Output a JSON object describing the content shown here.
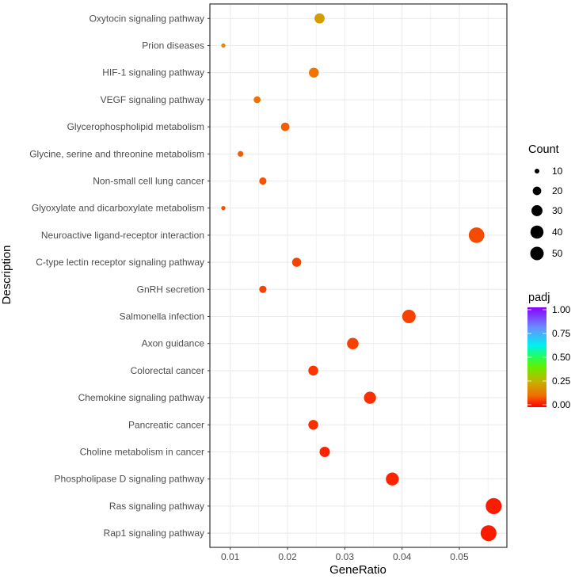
{
  "chart_data": {
    "type": "scatter",
    "title": "",
    "xlabel": "GeneRatio",
    "ylabel": "Description",
    "xlim": [
      0.00645,
      0.0583
    ],
    "xticks": [
      0.01,
      0.02,
      0.03,
      0.04,
      0.05
    ],
    "xtick_labels": [
      "0.01",
      "0.02",
      "0.03",
      "0.04",
      "0.05"
    ],
    "grid": true,
    "categories": [
      "Oxytocin signaling pathway",
      "Prion diseases",
      "HIF-1 signaling pathway",
      "VEGF signaling pathway",
      "Glycerophospholipid metabolism",
      "Glycine, serine and threonine metabolism",
      "Non-small cell lung cancer",
      "Glyoxylate and dicarboxylate metabolism",
      "Neuroactive ligand-receptor interaction",
      "C-type lectin receptor signaling pathway",
      "GnRH secretion",
      "Salmonella infection",
      "Axon guidance",
      "Colorectal cancer",
      "Chemokine signaling pathway",
      "Pancreatic cancer",
      "Choline metabolism in cancer",
      "Phospholipase D signaling pathway",
      "Ras signaling pathway",
      "Rap1 signaling pathway"
    ],
    "gene_ratio": [
      0.0256,
      0.0088,
      0.0246,
      0.0147,
      0.0196,
      0.0118,
      0.0157,
      0.0088,
      0.053,
      0.0216,
      0.0157,
      0.0412,
      0.0314,
      0.0245,
      0.0344,
      0.0245,
      0.0265,
      0.0383,
      0.056,
      0.0551
    ],
    "count": [
      26,
      9,
      25,
      15,
      20,
      12,
      16,
      9,
      54,
      22,
      16,
      42,
      32,
      25,
      35,
      25,
      27,
      39,
      57,
      56
    ],
    "padj": [
      0.21,
      0.17,
      0.13,
      0.12,
      0.1,
      0.1,
      0.09,
      0.09,
      0.08,
      0.07,
      0.07,
      0.07,
      0.07,
      0.06,
      0.05,
      0.05,
      0.04,
      0.04,
      0.03,
      0.03
    ],
    "legend_size": {
      "title": "Count",
      "values": [
        10,
        20,
        30,
        40,
        50
      ],
      "labels": [
        "10",
        "20",
        "30",
        "40",
        "50"
      ],
      "placement": "right"
    },
    "legend_color": {
      "title": "padj",
      "range": [
        0,
        1
      ],
      "labels": [
        "1.00",
        "0.75",
        "0.50",
        "0.25",
        "0.00"
      ],
      "label_values": [
        1,
        0.75,
        0.5,
        0.25,
        0
      ],
      "stops": [
        {
          "v": 0,
          "c": "#ff0000"
        },
        {
          "v": 0.12,
          "c": "#f07000"
        },
        {
          "v": 0.25,
          "c": "#c8b000"
        },
        {
          "v": 0.4,
          "c": "#66ee00"
        },
        {
          "v": 0.5,
          "c": "#22ff55"
        },
        {
          "v": 0.62,
          "c": "#00f0f0"
        },
        {
          "v": 0.8,
          "c": "#6a8cff"
        },
        {
          "v": 1,
          "c": "#8a00ff"
        }
      ],
      "placement": "right"
    }
  }
}
